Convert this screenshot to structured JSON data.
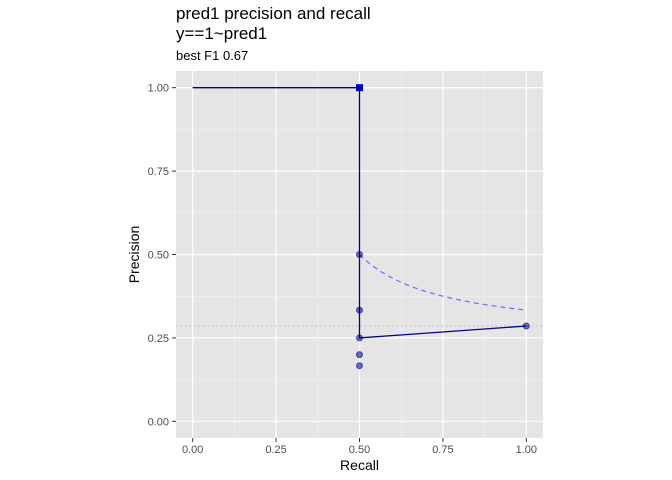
{
  "chart_data": {
    "type": "line",
    "title": "pred1 precision and recall",
    "title_line2": "y==1~pred1",
    "subtitle": "best F1 0.67",
    "xlabel": "Recall",
    "ylabel": "Precision",
    "xlim": [
      -0.05,
      1.05
    ],
    "ylim": [
      -0.05,
      1.05
    ],
    "x_ticks": [
      "0.00",
      "0.25",
      "0.50",
      "0.75",
      "1.00"
    ],
    "y_ticks": [
      "0.00",
      "0.25",
      "0.50",
      "0.75",
      "1.00"
    ],
    "grid": true,
    "background": "#e5e5e5",
    "series": [
      {
        "kind": "step-line",
        "color": "#00008b",
        "x": [
          0.0,
          0.5,
          0.5,
          0.5,
          1.0
        ],
        "y": [
          1.0,
          1.0,
          0.5,
          0.25,
          0.2857
        ]
      },
      {
        "kind": "points",
        "color": "#00008b",
        "x": [
          0.5,
          0.5,
          0.5,
          0.5,
          0.5,
          1.0
        ],
        "y": [
          0.5,
          0.3333,
          0.25,
          0.2,
          0.1667,
          0.2857
        ]
      },
      {
        "kind": "best-point",
        "color": "#0000cd",
        "x": [
          0.5
        ],
        "y": [
          1.0
        ]
      },
      {
        "kind": "f1-isoline",
        "color": "#6b6bff",
        "f1": 0.67,
        "x_from": 0.5,
        "x_to": 1.0
      }
    ],
    "reference_lines": {
      "vertical_x": [
        0.0,
        1.0
      ],
      "horizontal_y": [
        1.0,
        0.2857
      ]
    }
  }
}
